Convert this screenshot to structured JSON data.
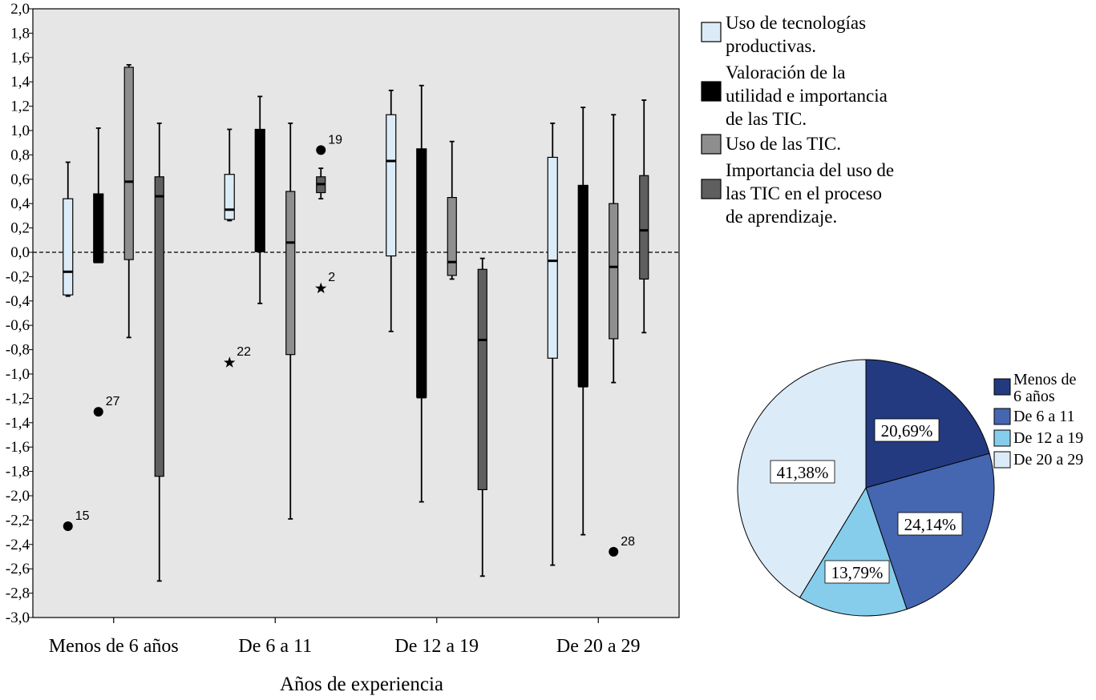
{
  "chart_data": [
    {
      "type": "boxplot",
      "xlabel": "Años de experiencia",
      "ylabel": "",
      "ylim": [
        -3.0,
        2.0
      ],
      "yticks": [
        "2,0",
        "1,8",
        "1,6",
        "1,4",
        "1,2",
        "1,0",
        "0,8",
        "0,6",
        "0,4",
        "0,2",
        "0,0",
        "-0,2",
        "-0,4",
        "-0,6",
        "-0,8",
        "-1,0",
        "-1,2",
        "-1,4",
        "-1,6",
        "-1,8",
        "-2,0",
        "-2,2",
        "-2,4",
        "-2,6",
        "-2,8",
        "-3,0"
      ],
      "reference_line": 0.0,
      "categories": [
        "Menos de 6 años",
        "De 6 a 11",
        "De 12 a 19",
        "De 20 a 29"
      ],
      "series": [
        {
          "name_lines": [
            "Uso de tecnologías",
            "productivas."
          ],
          "color": "#dbecf8",
          "boxes": [
            {
              "min": -0.36,
              "q1": -0.35,
              "median": -0.16,
              "q3": 0.44,
              "max": 0.74
            },
            {
              "min": 0.26,
              "q1": 0.27,
              "median": 0.35,
              "q3": 0.64,
              "max": 1.01
            },
            {
              "min": -0.65,
              "q1": -0.03,
              "median": 0.75,
              "q3": 1.13,
              "max": 1.33
            },
            {
              "min": -2.57,
              "q1": -0.87,
              "median": -0.07,
              "q3": 0.78,
              "max": 1.06
            }
          ]
        },
        {
          "name_lines": [
            "Valoración de la",
            "utilidad e importancia",
            "de las TIC."
          ],
          "color": "#000000",
          "boxes": [
            {
              "min": -0.08,
              "q1": -0.08,
              "median": -0.08,
              "q3": 0.48,
              "max": 1.02
            },
            {
              "min": -0.42,
              "q1": 0.01,
              "median": 0.01,
              "q3": 1.01,
              "max": 1.28
            },
            {
              "min": -2.05,
              "q1": -1.19,
              "median": -1.19,
              "q3": 0.85,
              "max": 1.37
            },
            {
              "min": -2.32,
              "q1": -1.1,
              "median": -1.1,
              "q3": 0.55,
              "max": 1.19
            }
          ]
        },
        {
          "name_lines": [
            "Uso de las TIC."
          ],
          "color": "#8e8e8e",
          "boxes": [
            {
              "min": -0.7,
              "q1": -0.06,
              "median": 0.58,
              "q3": 1.52,
              "max": 1.54
            },
            {
              "min": -2.19,
              "q1": -0.84,
              "median": 0.08,
              "q3": 0.5,
              "max": 1.06
            },
            {
              "min": -0.22,
              "q1": -0.19,
              "median": -0.08,
              "q3": 0.45,
              "max": 0.91
            },
            {
              "min": -1.07,
              "q1": -0.71,
              "median": -0.12,
              "q3": 0.4,
              "max": 1.13
            }
          ]
        },
        {
          "name_lines": [
            "Importancia del uso de",
            "las TIC en el proceso",
            "de aprendizaje."
          ],
          "color": "#5f5f5f",
          "boxes": [
            {
              "min": -2.7,
              "q1": -1.84,
              "median": 0.46,
              "q3": 0.62,
              "max": 1.06
            },
            {
              "min": 0.44,
              "q1": 0.49,
              "median": 0.56,
              "q3": 0.62,
              "max": 0.69
            },
            {
              "min": -2.66,
              "q1": -1.95,
              "median": -0.72,
              "q3": -0.14,
              "max": -0.05
            },
            {
              "min": -0.66,
              "q1": -0.22,
              "median": 0.18,
              "q3": 0.63,
              "max": 1.25
            }
          ]
        }
      ],
      "outliers": [
        {
          "group": 0,
          "series": 0,
          "value": -2.25,
          "label": "15",
          "marker": "circle"
        },
        {
          "group": 0,
          "series": 1,
          "value": -1.31,
          "label": "27",
          "marker": "circle"
        },
        {
          "group": 1,
          "series": 0,
          "value": -0.9,
          "label": "22",
          "marker": "star"
        },
        {
          "group": 1,
          "series": 3,
          "value": 0.84,
          "label": "19",
          "marker": "circle"
        },
        {
          "group": 1,
          "series": 3,
          "value": -0.29,
          "label": "2",
          "marker": "star"
        },
        {
          "group": 3,
          "series": 2,
          "value": -2.46,
          "label": "28",
          "marker": "circle"
        }
      ]
    },
    {
      "type": "pie",
      "slices": [
        {
          "label_lines": [
            "Menos de",
            "6 años"
          ],
          "value": 20.69,
          "text": "20,69%",
          "color": "#233a80"
        },
        {
          "label_lines": [
            "De 6 a 11"
          ],
          "value": 24.14,
          "text": "24,14%",
          "color": "#4566b0"
        },
        {
          "label_lines": [
            "De 12 a 19"
          ],
          "value": 13.79,
          "text": "13,79%",
          "color": "#86cdec"
        },
        {
          "label_lines": [
            "De 20 a 29"
          ],
          "value": 41.38,
          "text": "41,38%",
          "color": "#dcebf8"
        }
      ]
    }
  ]
}
